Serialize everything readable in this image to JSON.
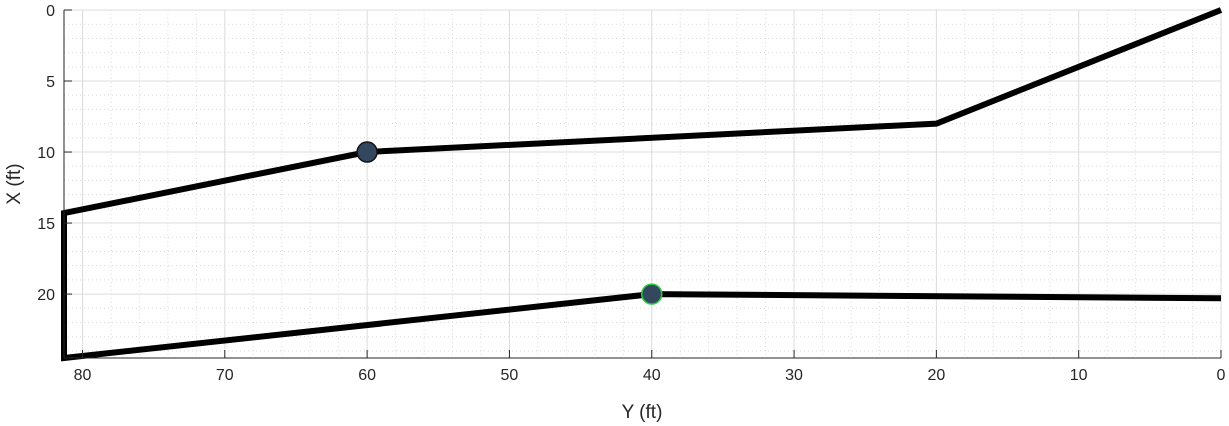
{
  "chart_data": {
    "type": "line",
    "xlabel": "Y (ft)",
    "ylabel": "X (ft)",
    "xlim": [
      81.3,
      0
    ],
    "ylim": [
      0,
      24.5
    ],
    "x_axis_reversed": true,
    "y_axis_reversed": true,
    "grid": true,
    "minor_grid": true,
    "xticks": [
      80,
      70,
      60,
      50,
      40,
      30,
      20,
      10,
      0
    ],
    "yticks": [
      0,
      5,
      10,
      15,
      20
    ],
    "series": [
      {
        "color": "#000000",
        "points": [
          {
            "x": 0,
            "y": 0
          },
          {
            "x": 20,
            "y": 8
          },
          {
            "x": 60,
            "y": 10
          },
          {
            "x": 81.3,
            "y": 14.3
          },
          {
            "x": 81.3,
            "y": 24.5
          },
          {
            "x": 40,
            "y": 20
          },
          {
            "x": 0,
            "y": 20.3
          }
        ]
      }
    ],
    "markers": [
      {
        "x": 60,
        "y": 10,
        "fill": "#33475f",
        "stroke": "#111111"
      },
      {
        "x": 40,
        "y": 20,
        "fill": "#33475f",
        "stroke": "#2ecc40"
      }
    ]
  }
}
